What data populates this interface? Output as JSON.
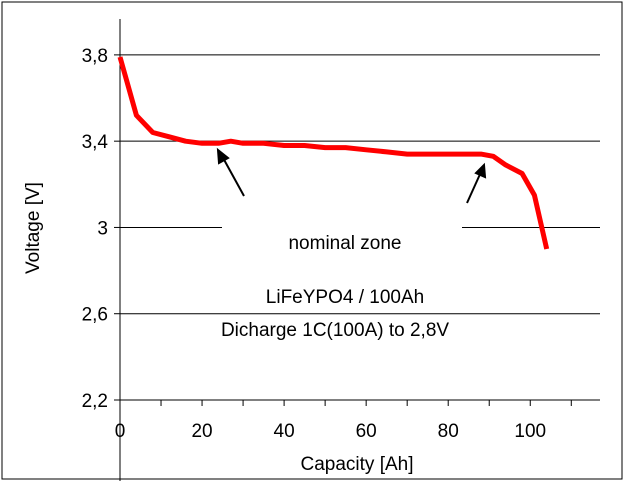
{
  "chart_data": {
    "type": "line",
    "title": "",
    "xlabel": "Capacity [Ah]",
    "ylabel": "Voltage [V]",
    "xlim": [
      0,
      117
    ],
    "ylim": [
      2.2,
      3.92
    ],
    "x_ticks": [
      0,
      20,
      40,
      60,
      80,
      100
    ],
    "x_tick_labels": [
      "0",
      "20",
      "40",
      "60",
      "80",
      "100"
    ],
    "y_ticks": [
      2.2,
      2.6,
      3.0,
      3.4,
      3.8
    ],
    "y_tick_labels": [
      "2,2",
      "2,6",
      "3",
      "3,4",
      "3,8"
    ],
    "grid": "horizontal",
    "series": [
      {
        "color": "#ff0000",
        "x": [
          0,
          4,
          8,
          12,
          16,
          20,
          24,
          27,
          30,
          35,
          40,
          45,
          50,
          55,
          60,
          65,
          70,
          75,
          80,
          85,
          88,
          91,
          94,
          98,
          101,
          104
        ],
        "y": [
          3.79,
          3.52,
          3.44,
          3.42,
          3.4,
          3.39,
          3.39,
          3.4,
          3.39,
          3.39,
          3.38,
          3.38,
          3.37,
          3.37,
          3.36,
          3.35,
          3.34,
          3.34,
          3.34,
          3.34,
          3.34,
          3.33,
          3.29,
          3.25,
          3.15,
          2.9
        ]
      }
    ],
    "annotations": [
      {
        "text": "nominal zone"
      },
      {
        "text": "LiFeYPO4 / 100Ah"
      },
      {
        "text": "Dicharge 1C(100A) to 2,8V"
      }
    ]
  }
}
